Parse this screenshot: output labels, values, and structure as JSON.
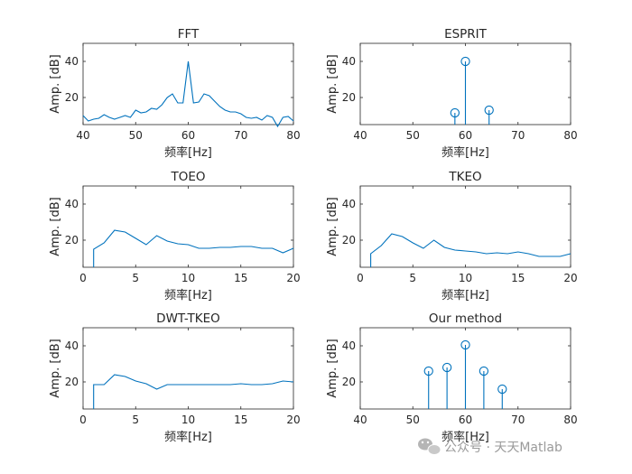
{
  "colors": {
    "series": "#0072bd",
    "axis": "#262626",
    "watermark": "#9a9a9a"
  },
  "watermark": {
    "icon": "wechat-icon",
    "text": "公众号 · 天天Matlab"
  },
  "chart_data": [
    {
      "type": "line",
      "title": "FFT",
      "xlabel": "频率[Hz]",
      "ylabel": "Amp. [dB]",
      "xlim": [
        40,
        80
      ],
      "ylim": [
        5,
        50
      ],
      "xticks": [
        "40",
        "50",
        "60",
        "70",
        "80"
      ],
      "yticks": [
        "20",
        "40"
      ],
      "grid": false,
      "x": [
        40,
        41,
        42,
        43,
        44,
        45,
        46,
        47,
        48,
        49,
        50,
        51,
        52,
        53,
        54,
        55,
        56,
        57,
        58,
        59,
        60,
        61,
        62,
        63,
        64,
        65,
        66,
        67,
        68,
        69,
        70,
        71,
        72,
        73,
        74,
        75,
        76,
        77,
        78,
        79,
        80
      ],
      "values": [
        10,
        7,
        8,
        8.5,
        10.5,
        9,
        8,
        9,
        10,
        9,
        13,
        11.5,
        12,
        14,
        13.5,
        16,
        20,
        22,
        17,
        17,
        40,
        17,
        17.5,
        22,
        21,
        18,
        15,
        13,
        12,
        12,
        11,
        9,
        8.5,
        9,
        7.5,
        10,
        9,
        4,
        9,
        9.5,
        7
      ]
    },
    {
      "type": "stem",
      "title": "ESPRIT",
      "xlabel": "频率[Hz]",
      "ylabel": "Amp. [dB]",
      "xlim": [
        40,
        80
      ],
      "ylim": [
        5,
        50
      ],
      "xticks": [
        "40",
        "50",
        "60",
        "70",
        "80"
      ],
      "yticks": [
        "20",
        "40"
      ],
      "grid": false,
      "x": [
        58,
        60,
        64.5
      ],
      "values": [
        11.5,
        40,
        13
      ]
    },
    {
      "type": "line",
      "title": "TOEO",
      "xlabel": "频率[Hz]",
      "ylabel": "Amp. [dB]",
      "xlim": [
        0,
        20
      ],
      "ylim": [
        5,
        50
      ],
      "xticks": [
        "0",
        "5",
        "10",
        "15",
        "20"
      ],
      "yticks": [
        "20",
        "40"
      ],
      "grid": false,
      "x": [
        1,
        1,
        2,
        3,
        4,
        5,
        6,
        7,
        8,
        9,
        10,
        11,
        12,
        13,
        14,
        15,
        16,
        17,
        18,
        19,
        20
      ],
      "values": [
        5,
        15,
        18.5,
        25.5,
        24.5,
        21,
        17.5,
        22.5,
        19.5,
        18,
        17.5,
        15.5,
        15.5,
        16,
        16,
        16.5,
        16.5,
        15.5,
        15.5,
        13,
        15.5
      ]
    },
    {
      "type": "line",
      "title": "TKEO",
      "xlabel": "频率[Hz]",
      "ylabel": "Amp. [dB]",
      "xlim": [
        0,
        20
      ],
      "ylim": [
        5,
        50
      ],
      "xticks": [
        "0",
        "5",
        "10",
        "15",
        "20"
      ],
      "yticks": [
        "20",
        "40"
      ],
      "grid": false,
      "x": [
        1,
        1,
        2,
        3,
        4,
        5,
        6,
        7,
        8,
        9,
        10,
        11,
        12,
        13,
        14,
        15,
        16,
        17,
        18,
        19,
        20
      ],
      "values": [
        5,
        12.5,
        17,
        23.5,
        22,
        18.5,
        15.5,
        20,
        16,
        14.5,
        14,
        13.5,
        12.5,
        13,
        12.5,
        13.5,
        12.5,
        11,
        11,
        11,
        12.5
      ]
    },
    {
      "type": "line",
      "title": "DWT-TKEO",
      "xlabel": "频率[Hz]",
      "ylabel": "Amp. [dB]",
      "xlim": [
        0,
        20
      ],
      "ylim": [
        5,
        50
      ],
      "xticks": [
        "0",
        "5",
        "10",
        "15",
        "20"
      ],
      "yticks": [
        "20",
        "40"
      ],
      "grid": false,
      "x": [
        1,
        1,
        2,
        3,
        4,
        5,
        6,
        7,
        8,
        9,
        10,
        11,
        12,
        13,
        14,
        15,
        16,
        17,
        18,
        19,
        20
      ],
      "values": [
        5,
        18.5,
        18.5,
        24,
        23,
        20.5,
        19,
        16,
        18.5,
        18.5,
        18.5,
        18.5,
        18.5,
        18.5,
        18.5,
        19,
        18.5,
        18.5,
        19,
        20.5,
        20
      ]
    },
    {
      "type": "stem",
      "title": "Our method",
      "xlabel": "频率[Hz]",
      "ylabel": "Amp. [dB]",
      "xlim": [
        40,
        80
      ],
      "ylim": [
        5,
        50
      ],
      "xticks": [
        "40",
        "50",
        "60",
        "70",
        "80"
      ],
      "yticks": [
        "20",
        "40"
      ],
      "grid": false,
      "x": [
        53,
        56.5,
        60,
        63.5,
        67
      ],
      "values": [
        26,
        28,
        40.5,
        26,
        16
      ]
    }
  ]
}
